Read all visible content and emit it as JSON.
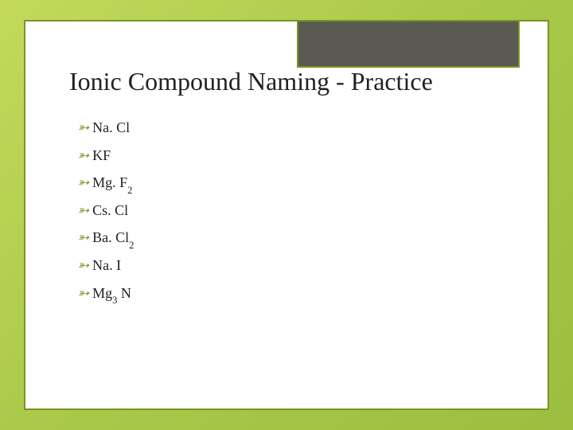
{
  "slide": {
    "title": "Ionic Compound Naming - Practice",
    "background_gradient": [
      "#c4d95a",
      "#a8c848",
      "#9cbe3f"
    ],
    "slide_bg": "#ffffff",
    "border_color": "#7a9428",
    "corner_box_color": "#5a5a52",
    "title_fontsize": 32,
    "title_color": "#222222",
    "bullet_color": "#7a9428",
    "bullet_fontsize": 18,
    "text_color": "#222222",
    "items": [
      {
        "base": "Na. Cl",
        "sub": ""
      },
      {
        "base": "KF",
        "sub": ""
      },
      {
        "base": "Mg. F",
        "sub": "2"
      },
      {
        "base": "Cs. Cl",
        "sub": ""
      },
      {
        "base": "Ba. Cl",
        "sub": "2"
      },
      {
        "base": "Na. I",
        "sub": ""
      },
      {
        "base": "Mg",
        "sub": "3",
        "tail": " N"
      }
    ]
  }
}
